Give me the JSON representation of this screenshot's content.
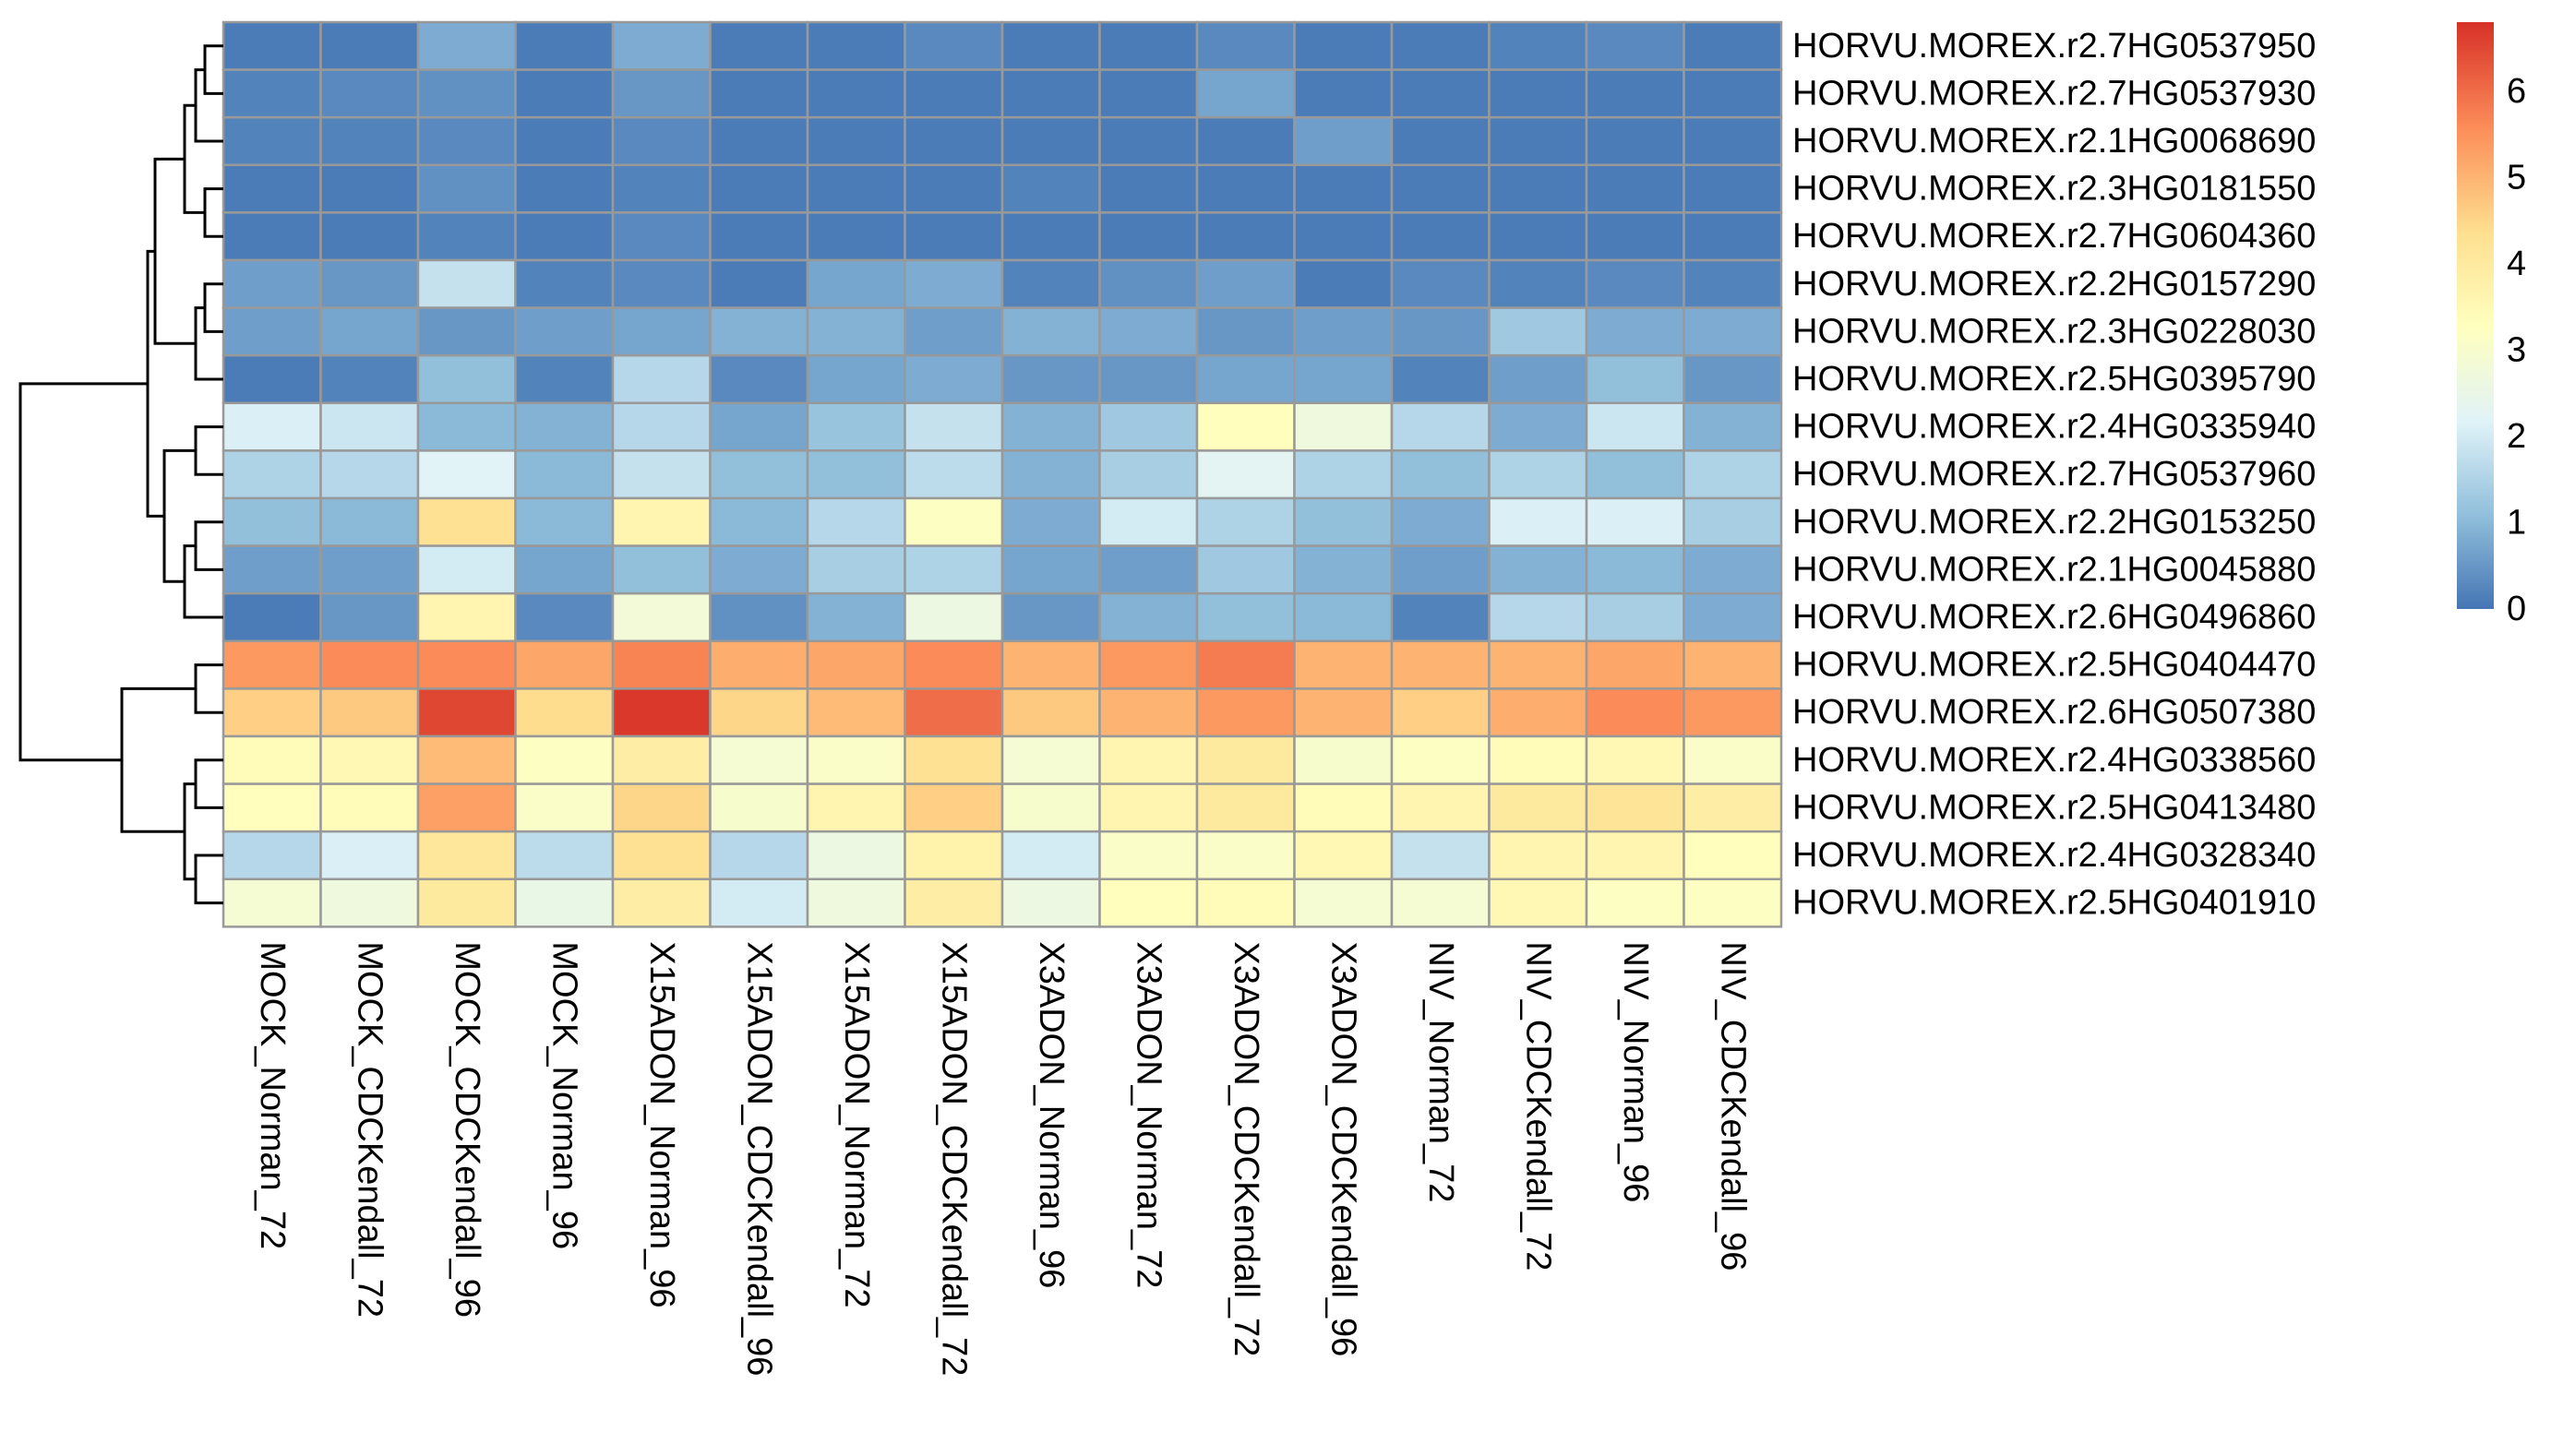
{
  "chart_data": {
    "type": "heatmap",
    "rows": [
      "HORVU.MOREX.r2.7HG0537950",
      "HORVU.MOREX.r2.7HG0537930",
      "HORVU.MOREX.r2.1HG0068690",
      "HORVU.MOREX.r2.3HG0181550",
      "HORVU.MOREX.r2.7HG0604360",
      "HORVU.MOREX.r2.2HG0157290",
      "HORVU.MOREX.r2.3HG0228030",
      "HORVU.MOREX.r2.5HG0395790",
      "HORVU.MOREX.r2.4HG0335940",
      "HORVU.MOREX.r2.7HG0537960",
      "HORVU.MOREX.r2.2HG0153250",
      "HORVU.MOREX.r2.1HG0045880",
      "HORVU.MOREX.r2.6HG0496860",
      "HORVU.MOREX.r2.5HG0404470",
      "HORVU.MOREX.r2.6HG0507380",
      "HORVU.MOREX.r2.4HG0338560",
      "HORVU.MOREX.r2.5HG0413480",
      "HORVU.MOREX.r2.4HG0328340",
      "HORVU.MOREX.r2.5HG0401910"
    ],
    "columns": [
      "MOCK_Norman_72",
      "MOCK_CDCKendall_72",
      "MOCK_CDCKendall_96",
      "MOCK_Norman_96",
      "X15ADON_Norman_96",
      "X15ADON_CDCKendall_96",
      "X15ADON_Norman_72",
      "X15ADON_CDCKendall_72",
      "X3ADON_Norman_96",
      "X3ADON_Norman_72",
      "X3ADON_CDCKendall_72",
      "X3ADON_CDCKendall_96",
      "NIV_Norman_72",
      "NIV_CDCKendall_72",
      "NIV_Norman_96",
      "NIV_CDCKendall_96"
    ],
    "values": [
      [
        0.1,
        0.1,
        0.8,
        0.1,
        0.8,
        0.1,
        0.1,
        0.3,
        0.1,
        0.1,
        0.3,
        0.1,
        0.1,
        0.2,
        0.3,
        0.1
      ],
      [
        0.2,
        0.3,
        0.4,
        0.1,
        0.5,
        0.1,
        0.1,
        0.1,
        0.1,
        0.1,
        0.7,
        0.1,
        0.1,
        0.1,
        0.1,
        0.1
      ],
      [
        0.2,
        0.2,
        0.3,
        0.1,
        0.3,
        0.1,
        0.1,
        0.1,
        0.1,
        0.1,
        0.1,
        0.6,
        0.1,
        0.1,
        0.1,
        0.1
      ],
      [
        0.1,
        0.1,
        0.4,
        0.1,
        0.2,
        0.1,
        0.1,
        0.1,
        0.2,
        0.1,
        0.1,
        0.1,
        0.1,
        0.1,
        0.1,
        0.1
      ],
      [
        0.1,
        0.1,
        0.2,
        0.1,
        0.3,
        0.1,
        0.1,
        0.1,
        0.1,
        0.1,
        0.1,
        0.1,
        0.1,
        0.1,
        0.1,
        0.1
      ],
      [
        0.6,
        0.5,
        1.8,
        0.2,
        0.3,
        0.1,
        0.7,
        0.8,
        0.2,
        0.4,
        0.6,
        0.1,
        0.3,
        0.2,
        0.3,
        0.2
      ],
      [
        0.6,
        0.7,
        0.5,
        0.6,
        0.7,
        0.9,
        0.9,
        0.6,
        0.9,
        0.8,
        0.5,
        0.6,
        0.5,
        1.3,
        0.8,
        0.8
      ],
      [
        0.1,
        0.2,
        1.1,
        0.2,
        1.6,
        0.3,
        0.7,
        0.8,
        0.5,
        0.5,
        0.7,
        0.7,
        0.2,
        0.6,
        1.1,
        0.5
      ],
      [
        2.1,
        1.9,
        1.0,
        0.9,
        1.6,
        0.7,
        1.2,
        1.8,
        0.9,
        1.3,
        3.3,
        2.7,
        1.6,
        0.8,
        1.9,
        0.9
      ],
      [
        1.5,
        1.6,
        2.2,
        1.0,
        1.8,
        1.1,
        1.1,
        1.7,
        0.9,
        1.4,
        2.3,
        1.5,
        1.1,
        1.5,
        1.1,
        1.5
      ],
      [
        1.1,
        1.0,
        4.3,
        1.0,
        3.6,
        1.0,
        1.6,
        3.2,
        0.8,
        2.0,
        1.5,
        1.1,
        0.8,
        2.1,
        2.1,
        1.4
      ],
      [
        0.6,
        0.6,
        2.0,
        0.7,
        1.1,
        0.8,
        1.4,
        1.5,
        0.7,
        0.6,
        1.3,
        0.9,
        0.6,
        0.9,
        1.0,
        0.8
      ],
      [
        0.1,
        0.5,
        3.6,
        0.3,
        2.8,
        0.4,
        0.9,
        2.6,
        0.5,
        0.9,
        1.1,
        1.0,
        0.2,
        1.6,
        1.4,
        0.8
      ],
      [
        5.4,
        5.6,
        5.6,
        5.2,
        5.7,
        5.1,
        5.2,
        5.6,
        5.0,
        5.4,
        5.8,
        5.0,
        5.0,
        5.0,
        5.2,
        5.0
      ],
      [
        4.6,
        4.7,
        6.5,
        4.4,
        6.7,
        4.5,
        4.9,
        6.0,
        4.7,
        5.0,
        5.4,
        5.0,
        4.6,
        5.1,
        5.6,
        5.4
      ],
      [
        3.4,
        3.5,
        4.9,
        3.2,
        3.9,
        2.9,
        3.1,
        4.3,
        2.9,
        3.6,
        4.0,
        3.0,
        3.2,
        3.4,
        3.5,
        3.1
      ],
      [
        3.3,
        3.4,
        5.3,
        3.1,
        4.5,
        3.0,
        3.6,
        4.6,
        3.0,
        3.6,
        4.0,
        3.4,
        3.6,
        4.0,
        4.2,
        3.9
      ],
      [
        1.6,
        2.1,
        4.1,
        1.7,
        4.3,
        1.6,
        2.6,
        3.7,
        2.0,
        3.1,
        3.1,
        3.5,
        1.8,
        3.6,
        3.6,
        3.3
      ],
      [
        2.9,
        2.7,
        4.0,
        2.5,
        3.9,
        2.0,
        2.7,
        3.9,
        2.6,
        3.3,
        3.4,
        2.9,
        2.9,
        3.5,
        3.2,
        3.2
      ]
    ],
    "color_scale": {
      "colors": [
        "#4575b4",
        "#91bfdb",
        "#e0f3f8",
        "#ffffbf",
        "#fee090",
        "#fc8d59",
        "#d73027"
      ],
      "positions": [
        0,
        0.16,
        0.32,
        0.48,
        0.64,
        0.82,
        1
      ],
      "range": [
        0,
        6.8
      ]
    },
    "legend": {
      "ticks": [
        "0",
        "1",
        "2",
        "3",
        "4",
        "5",
        "6"
      ],
      "placement": "top-right"
    },
    "cell_border_color": "#999999",
    "row_dendrogram": true,
    "column_dendrogram": false
  }
}
